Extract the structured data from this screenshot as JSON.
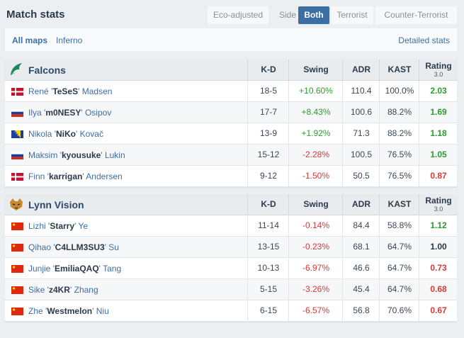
{
  "header": {
    "title": "Match stats",
    "eco_adjusted": "Eco-adjusted",
    "side_label": "Side",
    "sides": [
      "Both",
      "Terrorist",
      "Counter-Terrorist"
    ],
    "active_side": "Both"
  },
  "maps": {
    "tabs": [
      "All maps",
      "Inferno"
    ],
    "active": "All maps",
    "detailed_link": "Detailed stats"
  },
  "columns": {
    "kd": "K-D",
    "swing": "Swing",
    "adr": "ADR",
    "kast": "KAST",
    "rating": "Rating",
    "rating_version": "3.0"
  },
  "teams": [
    {
      "name": "Falcons",
      "logo_icon": "falcons-logo-icon",
      "players": [
        {
          "first": "René",
          "nick": "TeSeS",
          "last": "Madsen",
          "flag": "denmark",
          "kd": "18-5",
          "swing": "+10.60%",
          "adr": "110.4",
          "kast": "100.0%",
          "rating": "2.03"
        },
        {
          "first": "Ilya",
          "nick": "m0NESY",
          "last": "Osipov",
          "flag": "russia",
          "kd": "17-7",
          "swing": "+8.43%",
          "adr": "100.6",
          "kast": "88.2%",
          "rating": "1.69"
        },
        {
          "first": "Nikola",
          "nick": "NiKo",
          "last": "Kovač",
          "flag": "bosnia",
          "kd": "13-9",
          "swing": "+1.92%",
          "adr": "71.3",
          "kast": "88.2%",
          "rating": "1.18"
        },
        {
          "first": "Maksim",
          "nick": "kyousuke",
          "last": "Lukin",
          "flag": "russia",
          "kd": "15-12",
          "swing": "-2.28%",
          "adr": "100.5",
          "kast": "76.5%",
          "rating": "1.05"
        },
        {
          "first": "Finn",
          "nick": "karrigan",
          "last": "Andersen",
          "flag": "denmark",
          "kd": "9-12",
          "swing": "-1.50%",
          "adr": "50.5",
          "kast": "76.5%",
          "rating": "0.87"
        }
      ]
    },
    {
      "name": "Lynn Vision",
      "logo_icon": "lynn-vision-logo-icon",
      "players": [
        {
          "first": "Lizhi",
          "nick": "Starry",
          "last": "Ye",
          "flag": "china",
          "kd": "11-14",
          "swing": "-0.14%",
          "adr": "84.4",
          "kast": "58.8%",
          "rating": "1.12"
        },
        {
          "first": "Qihao",
          "nick": "C4LLM3SU3",
          "last": "Su",
          "flag": "china",
          "kd": "13-15",
          "swing": "-0.23%",
          "adr": "68.1",
          "kast": "64.7%",
          "rating": "1.00"
        },
        {
          "first": "Junjie",
          "nick": "EmiliaQAQ",
          "last": "Tang",
          "flag": "china",
          "kd": "10-13",
          "swing": "-6.97%",
          "adr": "46.6",
          "kast": "64.7%",
          "rating": "0.73"
        },
        {
          "first": "Sike",
          "nick": "z4KR",
          "last": "Zhang",
          "flag": "china",
          "kd": "5-15",
          "swing": "-3.26%",
          "adr": "45.4",
          "kast": "64.7%",
          "rating": "0.68"
        },
        {
          "first": "Zhe",
          "nick": "Westmelon",
          "last": "Niu",
          "flag": "china",
          "kd": "6-15",
          "swing": "-6.57%",
          "adr": "56.8",
          "kast": "70.6%",
          "rating": "0.67"
        }
      ]
    }
  ],
  "colors": {
    "accent": "#3d6ea3",
    "positive": "#2e9a2e",
    "negative": "#d13b3b"
  }
}
